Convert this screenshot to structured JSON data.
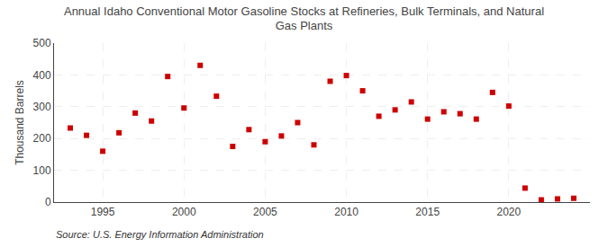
{
  "chart_data": {
    "type": "scatter",
    "title": "Annual Idaho Conventional Motor Gasoline Stocks at Refineries, Bulk Terminals, and Natural\nGas Plants",
    "ylabel": "Thousand Barrels",
    "annotations": [
      "Source: U.S. Energy Information Administration"
    ],
    "x": [
      1993,
      1994,
      1995,
      1996,
      1997,
      1998,
      1999,
      2000,
      2001,
      2002,
      2003,
      2004,
      2005,
      2006,
      2007,
      2008,
      2009,
      2010,
      2011,
      2012,
      2013,
      2014,
      2015,
      2016,
      2017,
      2018,
      2019,
      2020,
      2021,
      2022,
      2023,
      2024
    ],
    "values": [
      233,
      210,
      160,
      218,
      280,
      255,
      395,
      296,
      430,
      333,
      175,
      228,
      190,
      208,
      250,
      180,
      380,
      398,
      350,
      270,
      290,
      315,
      261,
      284,
      278,
      261,
      345,
      302,
      44,
      7,
      10,
      12
    ],
    "color": "#cc0000",
    "marker": "square",
    "xlim": [
      1992,
      2025
    ],
    "ylim": [
      0,
      500
    ],
    "xticks": [
      1995,
      2000,
      2005,
      2010,
      2015,
      2020
    ],
    "yticks": [
      0,
      100,
      200,
      300,
      400,
      500
    ],
    "grid": true
  }
}
